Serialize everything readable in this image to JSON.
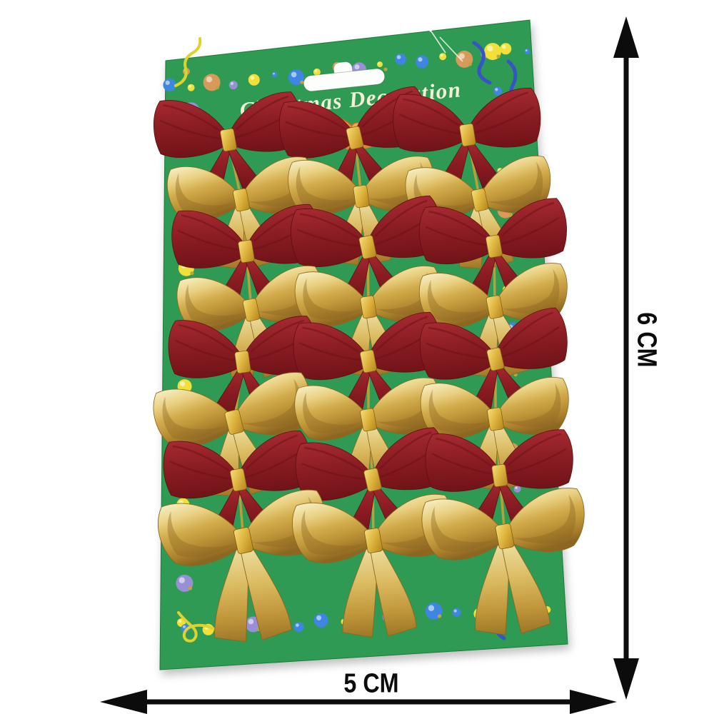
{
  "product_photo": {
    "title": "Christmas Decoration",
    "card_color": "#2e9a52",
    "card_edge_color": "#1e7a3c",
    "red_bow_color": "#8e2026",
    "gold_bow_color": "#d9b85e",
    "bow_rows": [
      "red",
      "gold",
      "red",
      "gold",
      "red",
      "gold",
      "red",
      "gold"
    ],
    "columns_per_row": 3,
    "red_bow_count": 12,
    "gold_bow_count": 12,
    "border_dot_colors": [
      "#3f86e0",
      "#f2e03a",
      "#d89a58",
      "#988fd6",
      "#f2e03a",
      "#3f86e0"
    ],
    "sparkle_dot_color": "#b9a63e",
    "streamer_yellow": "#ddd22e",
    "streamer_blue": "#3753c6",
    "printed_bow_color": "#e8913c"
  },
  "measurements": {
    "height_label": "6 CM",
    "width_label": "5 CM",
    "line_color": "#0c0c0c"
  }
}
